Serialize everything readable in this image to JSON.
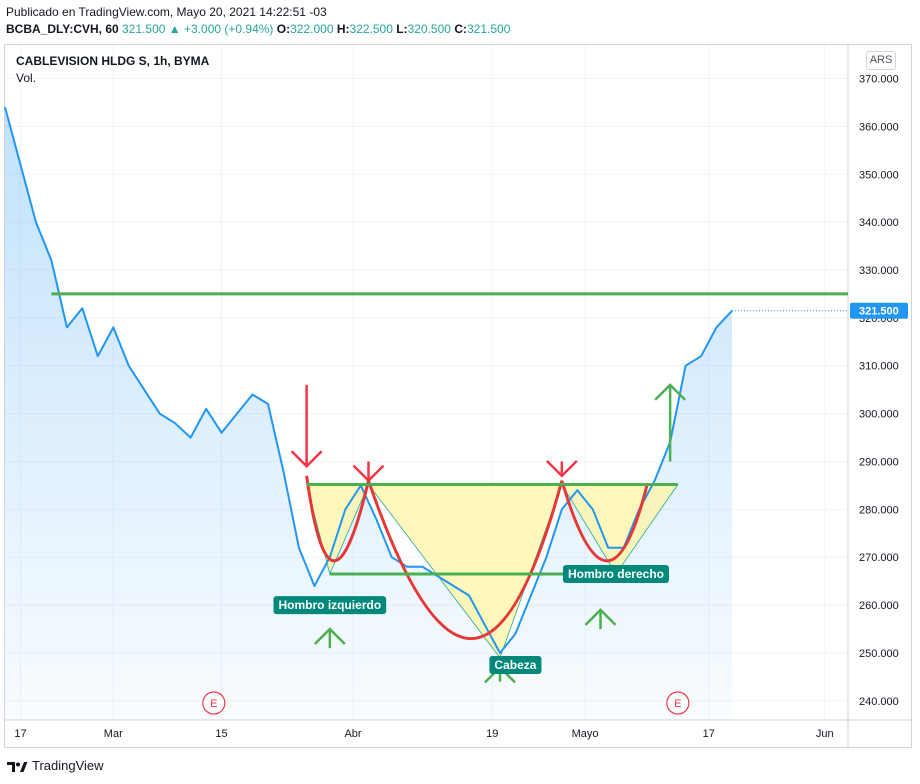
{
  "header": {
    "published": "Publicado en TradingView.com, Mayo 20, 2021 14:22:51 -03",
    "symbol": "BCBA_DLY:CVH, 60",
    "last": "321.500",
    "change": "+3.000 (+0.94%)",
    "o_label": "O:",
    "o_value": "322.000",
    "h_label": "H:",
    "h_value": "322.500",
    "l_label": "L:",
    "l_value": "320.500",
    "c_label": "C:",
    "c_value": "321.500"
  },
  "chart_title": "CABLEVISION HLDG S, 1h, BYMA",
  "volume_label": "Vol.",
  "currency_button": "ARS",
  "footer_brand": "TradingView",
  "colors": {
    "price_line": "#2196f3",
    "area_fill": "#2196f3",
    "neckline": "#4caf50",
    "arc": "#e53935",
    "arrow_down": "#f23645",
    "arrow_up": "#4caf50",
    "label_bg": "#00897b",
    "triangle_fill": "#fff59d",
    "last_price_tag": "#2196f3"
  },
  "chart_data": {
    "type": "line",
    "title": "CABLEVISION HLDG S, 1h, BYMA",
    "ylim": [
      236,
      377
    ],
    "yticks": [
      240,
      250,
      260,
      270,
      280,
      290,
      300,
      310,
      320,
      330,
      340,
      350,
      360,
      370
    ],
    "ytick_labels": [
      "240.000",
      "250.000",
      "260.000",
      "270.000",
      "280.000",
      "290.000",
      "300.000",
      "310.000",
      "320.000",
      "330.000",
      "340.000",
      "350.000",
      "360.000",
      "370.000"
    ],
    "x_range": [
      "2021-02-15",
      "2021-06-04"
    ],
    "xtick_dates": [
      "2021-02-17",
      "2021-03-01",
      "2021-03-15",
      "2021-04-01",
      "2021-04-19",
      "2021-05-01",
      "2021-05-17",
      "2021-06-01"
    ],
    "xtick_labels": [
      "17",
      "Mar",
      "15",
      "Abr",
      "19",
      "Mayo",
      "17",
      "Jun"
    ],
    "last_price": 321.5,
    "last_price_label": "321.500",
    "price_series": {
      "x": [
        "2021-02-15",
        "2021-02-17",
        "2021-02-19",
        "2021-02-21",
        "2021-02-23",
        "2021-02-25",
        "2021-02-27",
        "2021-03-01",
        "2021-03-03",
        "2021-03-05",
        "2021-03-07",
        "2021-03-09",
        "2021-03-11",
        "2021-03-13",
        "2021-03-15",
        "2021-03-17",
        "2021-03-19",
        "2021-03-21",
        "2021-03-23",
        "2021-03-25",
        "2021-03-27",
        "2021-03-29",
        "2021-03-31",
        "2021-04-02",
        "2021-04-04",
        "2021-04-06",
        "2021-04-08",
        "2021-04-10",
        "2021-04-12",
        "2021-04-14",
        "2021-04-16",
        "2021-04-18",
        "2021-04-20",
        "2021-04-22",
        "2021-04-24",
        "2021-04-26",
        "2021-04-28",
        "2021-04-30",
        "2021-05-02",
        "2021-05-04",
        "2021-05-06",
        "2021-05-08",
        "2021-05-10",
        "2021-05-12",
        "2021-05-14",
        "2021-05-16",
        "2021-05-18",
        "2021-05-20"
      ],
      "y": [
        364,
        352,
        340,
        332,
        318,
        322,
        312,
        318,
        310,
        305,
        300,
        298,
        295,
        301,
        296,
        300,
        304,
        302,
        288,
        272,
        264,
        270,
        280,
        285,
        278,
        270,
        268,
        268,
        266,
        264,
        262,
        256,
        250,
        254,
        262,
        270,
        280,
        284,
        280,
        272,
        272,
        280,
        286,
        294,
        310,
        312,
        318,
        321.5
      ]
    },
    "annotations": {
      "resistance": {
        "y": 325,
        "x0": "2021-02-21",
        "x1": "2021-06-04"
      },
      "neckline": {
        "y": 285.2,
        "x0": "2021-03-26",
        "x1": "2021-05-13"
      },
      "support": {
        "y": 266.5,
        "x0": "2021-03-29",
        "x1": "2021-05-08"
      },
      "labels": [
        {
          "text": "Hombro izquierdo",
          "x": "2021-03-29",
          "y": 260
        },
        {
          "text": "Cabeza",
          "x": "2021-04-22",
          "y": 247.5
        },
        {
          "text": "Hombro derecho",
          "x": "2021-05-05",
          "y": 266.5
        }
      ],
      "arrows_down": [
        {
          "x": "2021-03-26",
          "y_from": 306,
          "y_to": 289
        },
        {
          "x": "2021-04-03",
          "y_from": 290,
          "y_to": 286
        },
        {
          "x": "2021-04-28",
          "y_from": 290,
          "y_to": 287
        }
      ],
      "arrows_up": [
        {
          "x": "2021-03-29",
          "y_from": 251,
          "y_to": 255
        },
        {
          "x": "2021-04-20",
          "y_from": 244,
          "y_to": 247
        },
        {
          "x": "2021-05-03",
          "y_from": 255,
          "y_to": 259
        },
        {
          "x": "2021-05-12",
          "y_from": 290,
          "y_to": 306
        }
      ],
      "earnings_markers": [
        {
          "text": "E",
          "x": "2021-03-14"
        },
        {
          "text": "E",
          "x": "2021-05-13"
        }
      ]
    }
  }
}
